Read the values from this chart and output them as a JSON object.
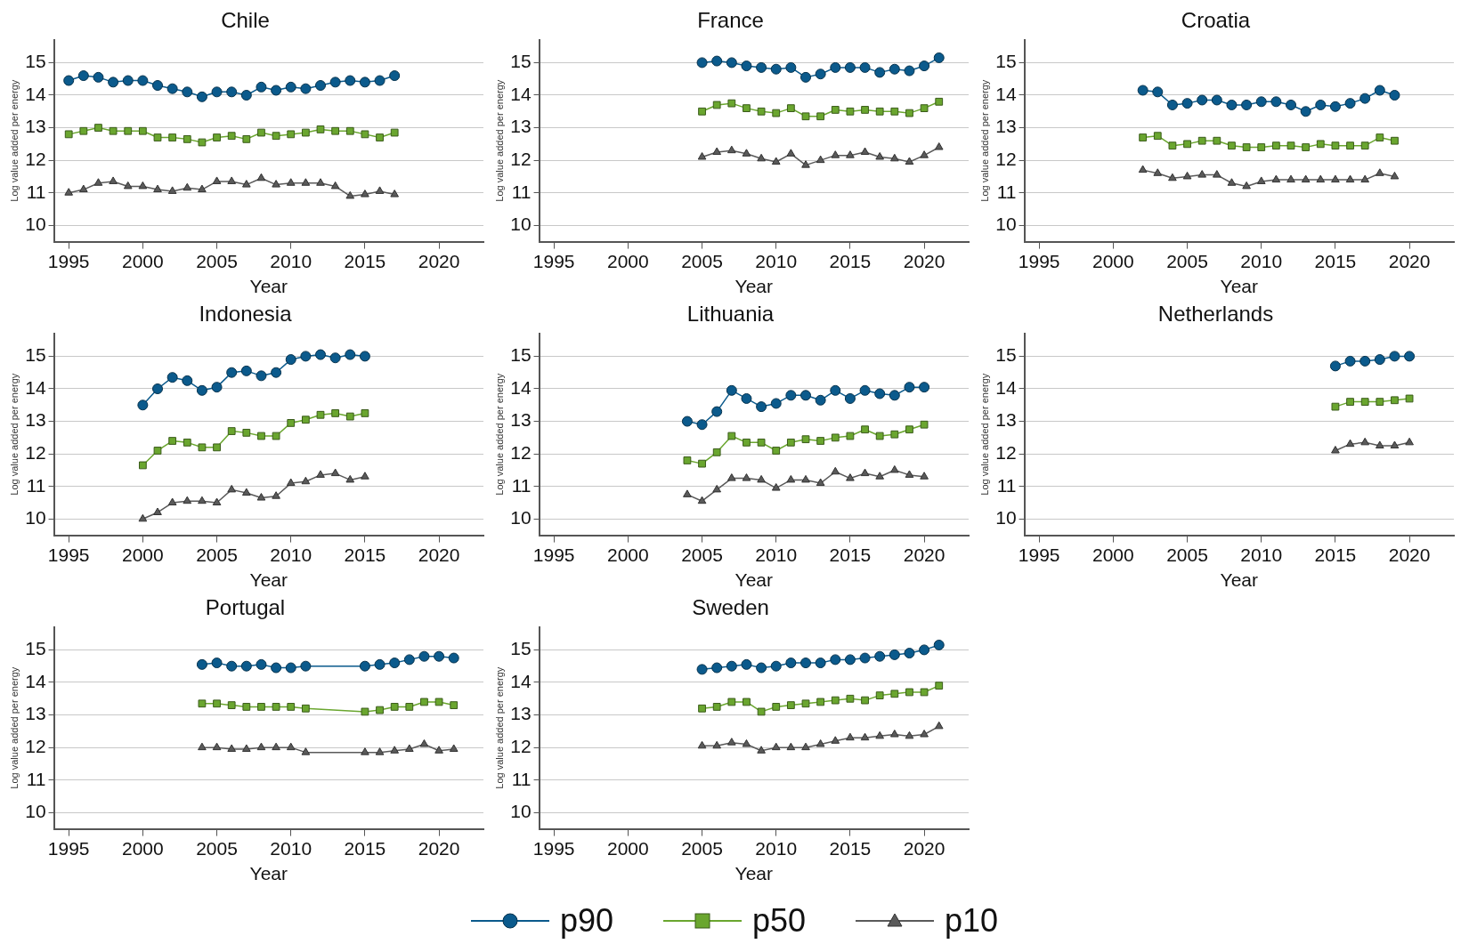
{
  "chart_data": [
    {
      "type": "line",
      "title": "Chile",
      "xlabel": "Year",
      "ylabel": "Log value added per energy",
      "xlim": [
        1994,
        2023
      ],
      "xticks": [
        1995,
        2000,
        2005,
        2010,
        2015,
        2020
      ],
      "ylim": [
        9.5,
        15.7
      ],
      "yticks": [
        10,
        11,
        12,
        13,
        14,
        15
      ],
      "grid": "y",
      "legend": "bottom",
      "x": [
        1995,
        1996,
        1997,
        1998,
        1999,
        2000,
        2001,
        2002,
        2003,
        2004,
        2005,
        2006,
        2007,
        2008,
        2009,
        2010,
        2011,
        2012,
        2013,
        2014,
        2015,
        2016,
        2017
      ],
      "series": [
        {
          "name": "p90",
          "color": "#0b5a8c",
          "marker": "circle",
          "values": [
            14.45,
            14.6,
            14.55,
            14.4,
            14.45,
            14.45,
            14.3,
            14.2,
            14.1,
            13.95,
            14.1,
            14.1,
            14.0,
            14.25,
            14.15,
            14.25,
            14.2,
            14.3,
            14.4,
            14.45,
            14.4,
            14.45,
            14.6
          ]
        },
        {
          "name": "p50",
          "color": "#6aa62f",
          "marker": "square",
          "values": [
            12.8,
            12.9,
            13.0,
            12.9,
            12.9,
            12.9,
            12.7,
            12.7,
            12.65,
            12.55,
            12.7,
            12.75,
            12.65,
            12.85,
            12.75,
            12.8,
            12.85,
            12.95,
            12.9,
            12.9,
            12.8,
            12.7,
            12.85
          ]
        },
        {
          "name": "p10",
          "color": "#5a5a5a",
          "marker": "triangle",
          "values": [
            11.0,
            11.1,
            11.3,
            11.35,
            11.2,
            11.2,
            11.1,
            11.05,
            11.15,
            11.1,
            11.35,
            11.35,
            11.25,
            11.45,
            11.25,
            11.3,
            11.3,
            11.3,
            11.2,
            10.9,
            10.95,
            11.05,
            10.95
          ]
        }
      ]
    },
    {
      "type": "line",
      "title": "France",
      "xlabel": "Year",
      "ylabel": "Log value added per energy",
      "xlim": [
        1994,
        2023
      ],
      "xticks": [
        1995,
        2000,
        2005,
        2010,
        2015,
        2020
      ],
      "ylim": [
        9.5,
        15.7
      ],
      "yticks": [
        10,
        11,
        12,
        13,
        14,
        15
      ],
      "grid": "y",
      "legend": "bottom",
      "x": [
        2005,
        2006,
        2007,
        2008,
        2009,
        2010,
        2011,
        2012,
        2013,
        2014,
        2015,
        2016,
        2017,
        2018,
        2019,
        2020,
        2021
      ],
      "series": [
        {
          "name": "p90",
          "color": "#0b5a8c",
          "marker": "circle",
          "values": [
            15.0,
            15.05,
            15.0,
            14.9,
            14.85,
            14.8,
            14.85,
            14.55,
            14.65,
            14.85,
            14.85,
            14.85,
            14.7,
            14.8,
            14.75,
            14.9,
            15.15
          ]
        },
        {
          "name": "p50",
          "color": "#6aa62f",
          "marker": "square",
          "values": [
            13.5,
            13.7,
            13.75,
            13.6,
            13.5,
            13.45,
            13.6,
            13.35,
            13.35,
            13.55,
            13.5,
            13.55,
            13.5,
            13.5,
            13.45,
            13.6,
            13.8
          ]
        },
        {
          "name": "p10",
          "color": "#5a5a5a",
          "marker": "triangle",
          "values": [
            12.1,
            12.25,
            12.3,
            12.2,
            12.05,
            11.95,
            12.2,
            11.85,
            12.0,
            12.15,
            12.15,
            12.25,
            12.1,
            12.05,
            11.95,
            12.15,
            12.4
          ]
        }
      ]
    },
    {
      "type": "line",
      "title": "Croatia",
      "xlabel": "Year",
      "ylabel": "Log value added per energy",
      "xlim": [
        1994,
        2023
      ],
      "xticks": [
        1995,
        2000,
        2005,
        2010,
        2015,
        2020
      ],
      "ylim": [
        9.5,
        15.7
      ],
      "yticks": [
        10,
        11,
        12,
        13,
        14,
        15
      ],
      "grid": "y",
      "legend": "bottom",
      "x": [
        2002,
        2003,
        2004,
        2005,
        2006,
        2007,
        2008,
        2009,
        2010,
        2011,
        2012,
        2013,
        2014,
        2015,
        2016,
        2017,
        2018,
        2019
      ],
      "series": [
        {
          "name": "p90",
          "color": "#0b5a8c",
          "marker": "circle",
          "values": [
            14.15,
            14.1,
            13.7,
            13.75,
            13.85,
            13.85,
            13.7,
            13.7,
            13.8,
            13.8,
            13.7,
            13.5,
            13.7,
            13.65,
            13.75,
            13.9,
            14.15,
            14.0
          ]
        },
        {
          "name": "p50",
          "color": "#6aa62f",
          "marker": "square",
          "values": [
            12.7,
            12.75,
            12.45,
            12.5,
            12.6,
            12.6,
            12.45,
            12.4,
            12.4,
            12.45,
            12.45,
            12.4,
            12.5,
            12.45,
            12.45,
            12.45,
            12.7,
            12.6
          ]
        },
        {
          "name": "p10",
          "color": "#5a5a5a",
          "marker": "triangle",
          "values": [
            11.7,
            11.6,
            11.45,
            11.5,
            11.55,
            11.55,
            11.3,
            11.2,
            11.35,
            11.4,
            11.4,
            11.4,
            11.4,
            11.4,
            11.4,
            11.4,
            11.6,
            11.5
          ]
        }
      ]
    },
    {
      "type": "line",
      "title": "Indonesia",
      "xlabel": "Year",
      "ylabel": "Log value added per energy",
      "xlim": [
        1994,
        2023
      ],
      "xticks": [
        1995,
        2000,
        2005,
        2010,
        2015,
        2020
      ],
      "ylim": [
        9.5,
        15.7
      ],
      "yticks": [
        10,
        11,
        12,
        13,
        14,
        15
      ],
      "grid": "y",
      "legend": "bottom",
      "x": [
        2000,
        2001,
        2002,
        2003,
        2004,
        2005,
        2006,
        2007,
        2008,
        2009,
        2010,
        2011,
        2012,
        2013,
        2014,
        2015
      ],
      "series": [
        {
          "name": "p90",
          "color": "#0b5a8c",
          "marker": "circle",
          "values": [
            13.5,
            14.0,
            14.35,
            14.25,
            13.95,
            14.05,
            14.5,
            14.55,
            14.4,
            14.5,
            14.9,
            15.0,
            15.05,
            14.95,
            15.05,
            15.0
          ]
        },
        {
          "name": "p50",
          "color": "#6aa62f",
          "marker": "square",
          "values": [
            11.65,
            12.1,
            12.4,
            12.35,
            12.2,
            12.2,
            12.7,
            12.65,
            12.55,
            12.55,
            12.95,
            13.05,
            13.2,
            13.25,
            13.15,
            13.25
          ]
        },
        {
          "name": "p10",
          "color": "#5a5a5a",
          "marker": "triangle",
          "values": [
            10.0,
            10.2,
            10.5,
            10.55,
            10.55,
            10.5,
            10.9,
            10.8,
            10.65,
            10.7,
            11.1,
            11.15,
            11.35,
            11.4,
            11.2,
            11.3
          ]
        }
      ]
    },
    {
      "type": "line",
      "title": "Lithuania",
      "xlabel": "Year",
      "ylabel": "Log value added per energy",
      "xlim": [
        1994,
        2023
      ],
      "xticks": [
        1995,
        2000,
        2005,
        2010,
        2015,
        2020
      ],
      "ylim": [
        9.5,
        15.7
      ],
      "yticks": [
        10,
        11,
        12,
        13,
        14,
        15
      ],
      "grid": "y",
      "legend": "bottom",
      "x": [
        2004,
        2005,
        2006,
        2007,
        2008,
        2009,
        2010,
        2011,
        2012,
        2013,
        2014,
        2015,
        2016,
        2017,
        2018,
        2019,
        2020
      ],
      "series": [
        {
          "name": "p90",
          "color": "#0b5a8c",
          "marker": "circle",
          "values": [
            13.0,
            12.9,
            13.3,
            13.95,
            13.7,
            13.45,
            13.55,
            13.8,
            13.8,
            13.65,
            13.95,
            13.7,
            13.95,
            13.85,
            13.8,
            14.05,
            14.05
          ]
        },
        {
          "name": "p50",
          "color": "#6aa62f",
          "marker": "square",
          "values": [
            11.8,
            11.7,
            12.05,
            12.55,
            12.35,
            12.35,
            12.1,
            12.35,
            12.45,
            12.4,
            12.5,
            12.55,
            12.75,
            12.55,
            12.6,
            12.75,
            12.9
          ]
        },
        {
          "name": "p10",
          "color": "#5a5a5a",
          "marker": "triangle",
          "values": [
            10.75,
            10.55,
            10.9,
            11.25,
            11.25,
            11.2,
            10.95,
            11.2,
            11.2,
            11.1,
            11.45,
            11.25,
            11.4,
            11.3,
            11.5,
            11.35,
            11.3
          ]
        }
      ]
    },
    {
      "type": "line",
      "title": "Netherlands",
      "xlabel": "Year",
      "ylabel": "Log value added per energy",
      "xlim": [
        1994,
        2023
      ],
      "xticks": [
        1995,
        2000,
        2005,
        2010,
        2015,
        2020
      ],
      "ylim": [
        9.5,
        15.7
      ],
      "yticks": [
        10,
        11,
        12,
        13,
        14,
        15
      ],
      "grid": "y",
      "legend": "bottom",
      "x": [
        2015,
        2016,
        2017,
        2018,
        2019,
        2020
      ],
      "series": [
        {
          "name": "p90",
          "color": "#0b5a8c",
          "marker": "circle",
          "values": [
            14.7,
            14.85,
            14.85,
            14.9,
            15.0,
            15.0
          ]
        },
        {
          "name": "p50",
          "color": "#6aa62f",
          "marker": "square",
          "values": [
            13.45,
            13.6,
            13.6,
            13.6,
            13.65,
            13.7
          ]
        },
        {
          "name": "p10",
          "color": "#5a5a5a",
          "marker": "triangle",
          "values": [
            12.1,
            12.3,
            12.35,
            12.25,
            12.25,
            12.35
          ]
        }
      ]
    },
    {
      "type": "line",
      "title": "Portugal",
      "xlabel": "Year",
      "ylabel": "Log value added per energy",
      "xlim": [
        1994,
        2023
      ],
      "xticks": [
        1995,
        2000,
        2005,
        2010,
        2015,
        2020
      ],
      "ylim": [
        9.5,
        15.7
      ],
      "yticks": [
        10,
        11,
        12,
        13,
        14,
        15
      ],
      "grid": "y",
      "legend": "bottom",
      "x": [
        2004,
        2005,
        2006,
        2007,
        2008,
        2009,
        2010,
        2011,
        2015,
        2016,
        2017,
        2018,
        2019,
        2020,
        2021
      ],
      "series": [
        {
          "name": "p90",
          "color": "#0b5a8c",
          "marker": "circle",
          "values": [
            14.55,
            14.6,
            14.5,
            14.5,
            14.55,
            14.45,
            14.45,
            14.5,
            14.5,
            14.55,
            14.6,
            14.7,
            14.8,
            14.8,
            14.75
          ]
        },
        {
          "name": "p50",
          "color": "#6aa62f",
          "marker": "square",
          "values": [
            13.35,
            13.35,
            13.3,
            13.25,
            13.25,
            13.25,
            13.25,
            13.2,
            13.1,
            13.15,
            13.25,
            13.25,
            13.4,
            13.4,
            13.3
          ]
        },
        {
          "name": "p10",
          "color": "#5a5a5a",
          "marker": "triangle",
          "values": [
            12.0,
            12.0,
            11.95,
            11.95,
            12.0,
            12.0,
            12.0,
            11.85,
            11.85,
            11.85,
            11.9,
            11.95,
            12.1,
            11.9,
            11.95
          ]
        }
      ]
    },
    {
      "type": "line",
      "title": "Sweden",
      "xlabel": "Year",
      "ylabel": "Log value added per energy",
      "xlim": [
        1994,
        2023
      ],
      "xticks": [
        1995,
        2000,
        2005,
        2010,
        2015,
        2020
      ],
      "ylim": [
        9.5,
        15.7
      ],
      "yticks": [
        10,
        11,
        12,
        13,
        14,
        15
      ],
      "grid": "y",
      "legend": "bottom",
      "x": [
        2005,
        2006,
        2007,
        2008,
        2009,
        2010,
        2011,
        2012,
        2013,
        2014,
        2015,
        2016,
        2017,
        2018,
        2019,
        2020,
        2021
      ],
      "series": [
        {
          "name": "p90",
          "color": "#0b5a8c",
          "marker": "circle",
          "values": [
            14.4,
            14.45,
            14.5,
            14.55,
            14.45,
            14.5,
            14.6,
            14.6,
            14.6,
            14.7,
            14.7,
            14.75,
            14.8,
            14.85,
            14.9,
            15.0,
            15.15
          ]
        },
        {
          "name": "p50",
          "color": "#6aa62f",
          "marker": "square",
          "values": [
            13.2,
            13.25,
            13.4,
            13.4,
            13.1,
            13.25,
            13.3,
            13.35,
            13.4,
            13.45,
            13.5,
            13.45,
            13.6,
            13.65,
            13.7,
            13.7,
            13.9
          ]
        },
        {
          "name": "p10",
          "color": "#5a5a5a",
          "marker": "triangle",
          "values": [
            12.05,
            12.05,
            12.15,
            12.1,
            11.9,
            12.0,
            12.0,
            12.0,
            12.1,
            12.2,
            12.3,
            12.3,
            12.35,
            12.4,
            12.35,
            12.4,
            12.65
          ]
        }
      ]
    }
  ]
}
